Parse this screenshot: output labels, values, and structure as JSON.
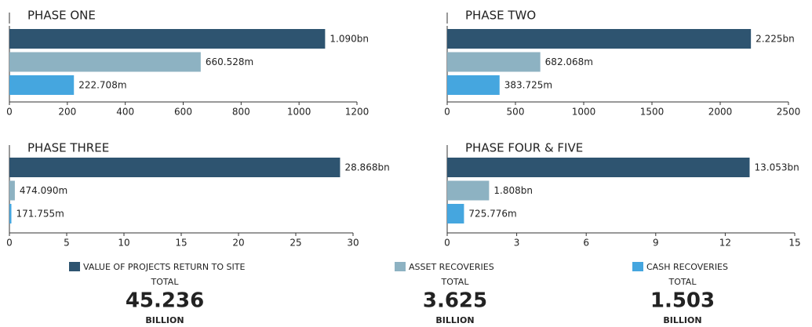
{
  "chart_data": [
    {
      "type": "bar",
      "title": "PHASE ONE",
      "values": [
        1090,
        660.528,
        222.708
      ],
      "value_labels": [
        "1.090bn",
        "660.528m",
        "222.708m"
      ],
      "xlim": [
        0,
        1200
      ],
      "xticks": [
        0,
        200,
        400,
        600,
        800,
        1000,
        1200
      ]
    },
    {
      "type": "bar",
      "title": "PHASE TWO",
      "values": [
        2225,
        682.068,
        383.725
      ],
      "value_labels": [
        "2.225bn",
        "682.068m",
        "383.725m"
      ],
      "xlim": [
        0,
        2500
      ],
      "xticks": [
        0,
        500,
        1000,
        1500,
        2000,
        2500
      ]
    },
    {
      "type": "bar",
      "title": "PHASE THREE",
      "values": [
        28.868,
        0.47409,
        0.171755
      ],
      "value_labels": [
        "28.868bn",
        "474.090m",
        "171.755m"
      ],
      "xlim": [
        0,
        30
      ],
      "xticks": [
        0,
        5,
        10,
        15,
        20,
        25,
        30
      ]
    },
    {
      "type": "bar",
      "title": "PHASE FOUR & FIVE",
      "values": [
        13.053,
        1.808,
        0.725776
      ],
      "value_labels": [
        "13.053bn",
        "1.808bn",
        "725.776m"
      ],
      "xlim": [
        0,
        15
      ],
      "xticks": [
        0,
        3,
        6,
        9,
        12,
        15
      ]
    }
  ],
  "legend": [
    {
      "name": "VALUE OF PROJECTS RETURN TO SITE",
      "color": "#2e5470",
      "total_label": "TOTAL",
      "total": 45.236,
      "unit": "BILLION"
    },
    {
      "name": "ASSET RECOVERIES",
      "color": "#8db2c2",
      "total_label": "TOTAL",
      "total": 3.625,
      "unit": "BILLION"
    },
    {
      "name": "CASH RECOVERIES",
      "color": "#45a6df",
      "total_label": "TOTAL",
      "total": 1.503,
      "unit": "BILLION"
    }
  ]
}
